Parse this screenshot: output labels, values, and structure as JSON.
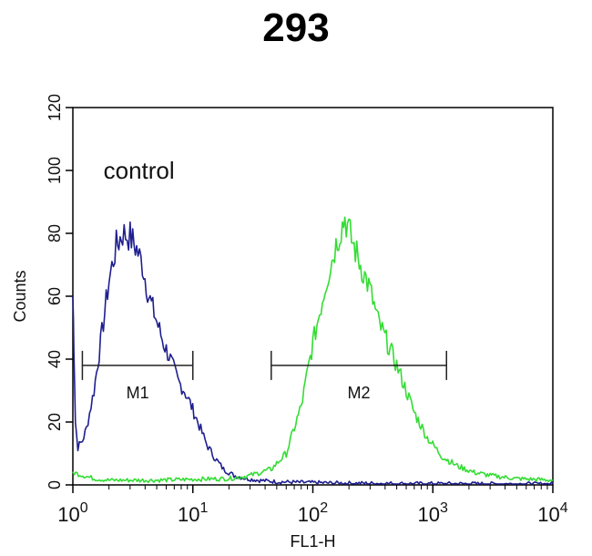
{
  "chart_data": {
    "type": "line",
    "title": "293",
    "xlabel": "FL1-H",
    "ylabel": "Counts",
    "x_scale": "log",
    "xlim": [
      1,
      10000
    ],
    "ylim": [
      0,
      120
    ],
    "y_ticks": [
      0,
      20,
      40,
      60,
      80,
      100,
      120
    ],
    "x_ticks": [
      {
        "value": 1,
        "base": "10",
        "exp": "0"
      },
      {
        "value": 10,
        "base": "10",
        "exp": "1"
      },
      {
        "value": 100,
        "base": "10",
        "exp": "2"
      },
      {
        "value": 1000,
        "base": "10",
        "exp": "3"
      },
      {
        "value": 10000,
        "base": "10",
        "exp": "4"
      }
    ],
    "grid": false,
    "annotations": [
      {
        "text": "control",
        "x": 1.8,
        "y": 100
      }
    ],
    "gates": [
      {
        "label": "M1",
        "x_start": 1.2,
        "x_end": 10,
        "y": 38
      },
      {
        "label": "M2",
        "x_start": 45,
        "x_end": 1300,
        "y": 38
      }
    ],
    "series": [
      {
        "color": "#1f1f8f",
        "points": [
          [
            1.0,
            60
          ],
          [
            1.02,
            45
          ],
          [
            1.05,
            20
          ],
          [
            1.1,
            12
          ],
          [
            1.2,
            14
          ],
          [
            1.3,
            18
          ],
          [
            1.5,
            30
          ],
          [
            1.7,
            45
          ],
          [
            2.0,
            65
          ],
          [
            2.3,
            76
          ],
          [
            2.6,
            80
          ],
          [
            3.0,
            79
          ],
          [
            3.4,
            75
          ],
          [
            3.8,
            70
          ],
          [
            4.3,
            60
          ],
          [
            5.0,
            52
          ],
          [
            5.7,
            45
          ],
          [
            6.5,
            40
          ],
          [
            7.5,
            33
          ],
          [
            8.5,
            30
          ],
          [
            9.5,
            26
          ],
          [
            11,
            20
          ],
          [
            13,
            13
          ],
          [
            15,
            9
          ],
          [
            18,
            5
          ],
          [
            22,
            3
          ],
          [
            28,
            2
          ],
          [
            35,
            1.5
          ],
          [
            50,
            1
          ],
          [
            80,
            0.8
          ],
          [
            150,
            0.6
          ],
          [
            300,
            0.5
          ],
          [
            600,
            0.4
          ],
          [
            1000,
            0.4
          ],
          [
            10000,
            0.3
          ]
        ]
      },
      {
        "color": "#33dd33",
        "points": [
          [
            1.0,
            4
          ],
          [
            1.5,
            2
          ],
          [
            2.0,
            1.5
          ],
          [
            3.0,
            1.5
          ],
          [
            5.0,
            1.5
          ],
          [
            10,
            1.8
          ],
          [
            20,
            2
          ],
          [
            30,
            3
          ],
          [
            45,
            5
          ],
          [
            60,
            10
          ],
          [
            80,
            25
          ],
          [
            100,
            45
          ],
          [
            130,
            65
          ],
          [
            160,
            78
          ],
          [
            185,
            85
          ],
          [
            210,
            78
          ],
          [
            250,
            70
          ],
          [
            300,
            62
          ],
          [
            350,
            52
          ],
          [
            420,
            45
          ],
          [
            500,
            38
          ],
          [
            600,
            30
          ],
          [
            700,
            23
          ],
          [
            900,
            15
          ],
          [
            1200,
            9
          ],
          [
            1600,
            6
          ],
          [
            2200,
            4
          ],
          [
            3000,
            3
          ],
          [
            5000,
            2
          ],
          [
            10000,
            1.5
          ]
        ]
      }
    ]
  }
}
